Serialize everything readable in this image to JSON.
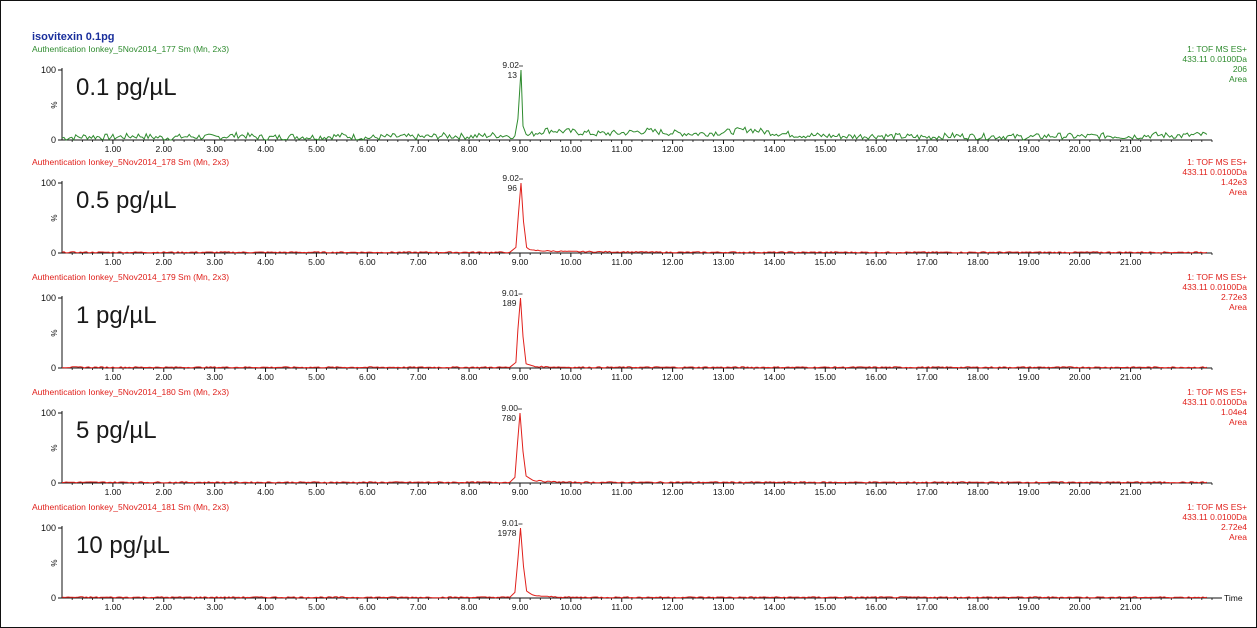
{
  "chart_data": {
    "type": "line",
    "title": "isovitexin 0.1pg",
    "xlabel": "Time",
    "xlim": [
      0,
      22.6
    ],
    "xticks": [
      1,
      2,
      3,
      4,
      5,
      6,
      7,
      8,
      9,
      10,
      11,
      12,
      13,
      14,
      15,
      16,
      17,
      18,
      19,
      20,
      21
    ],
    "xtick_labels": [
      "1.00",
      "2.00",
      "3.00",
      "4.00",
      "5.00",
      "6.00",
      "7.00",
      "8.00",
      "9.00",
      "10.00",
      "11.00",
      "12.00",
      "13.00",
      "14.00",
      "15.00",
      "16.00",
      "17.00",
      "18.00",
      "19.00",
      "20.00",
      "21.00"
    ],
    "ylim": [
      0,
      100
    ],
    "ytick_labels": [
      "100",
      "%",
      "0"
    ],
    "grid": false,
    "colors": {
      "axis": "#111111",
      "title": "#1a2f9c",
      "trace_green": "#2e8b2e",
      "trace_red": "#e0201b",
      "big_label": "#1a1a1a",
      "peak_label": "#222222"
    },
    "panels": [
      {
        "header": "Authentication Ionkey_5Nov2014_177 Sm (Mn, 2x3)",
        "color": "#2e8b2e",
        "label": "0.1 pg/µL",
        "info": [
          "1: TOF MS ES+",
          "433.11 0.0100Da",
          "206",
          "Area"
        ],
        "peak": {
          "time": 9.02,
          "time_label": "9.02",
          "area_label": "13",
          "height": 100
        },
        "noise": "high",
        "series": [
          [
            0.0,
            3
          ],
          [
            0.5,
            5
          ],
          [
            1.0,
            4
          ],
          [
            1.5,
            6
          ],
          [
            2.0,
            3
          ],
          [
            2.5,
            5
          ],
          [
            3.0,
            4
          ],
          [
            3.5,
            7
          ],
          [
            4.0,
            3
          ],
          [
            4.5,
            5
          ],
          [
            5.0,
            4
          ],
          [
            5.5,
            6
          ],
          [
            6.0,
            3
          ],
          [
            6.5,
            5
          ],
          [
            7.0,
            4
          ],
          [
            7.5,
            6
          ],
          [
            8.0,
            5
          ],
          [
            8.5,
            7
          ],
          [
            8.9,
            6
          ],
          [
            8.96,
            30
          ],
          [
            9.02,
            100
          ],
          [
            9.06,
            20
          ],
          [
            9.12,
            6
          ],
          [
            9.5,
            14
          ],
          [
            10.0,
            12
          ],
          [
            10.5,
            9
          ],
          [
            11.0,
            10
          ],
          [
            11.5,
            13
          ],
          [
            12.0,
            10
          ],
          [
            12.5,
            9
          ],
          [
            13.0,
            11
          ],
          [
            13.5,
            15
          ],
          [
            14.0,
            10
          ],
          [
            14.5,
            7
          ],
          [
            15.0,
            6
          ],
          [
            15.5,
            5
          ],
          [
            16.0,
            6
          ],
          [
            16.5,
            5
          ],
          [
            17.0,
            4
          ],
          [
            17.5,
            6
          ],
          [
            18.0,
            5
          ],
          [
            18.5,
            5
          ],
          [
            19.0,
            4
          ],
          [
            19.5,
            6
          ],
          [
            20.0,
            5
          ],
          [
            20.5,
            6
          ],
          [
            21.0,
            5
          ],
          [
            21.5,
            7
          ],
          [
            22.0,
            6
          ],
          [
            22.5,
            8
          ]
        ]
      },
      {
        "header": "Authentication Ionkey_5Nov2014_178 Sm (Mn, 2x3)",
        "color": "#e0201b",
        "label": "0.5 pg/µL",
        "info": [
          "1: TOF MS ES+",
          "433.11 0.0100Da",
          "1.42e3",
          "Area"
        ],
        "peak": {
          "time": 9.02,
          "time_label": "9.02",
          "area_label": "96",
          "height": 100
        },
        "noise": "low",
        "series": [
          [
            0.0,
            1
          ],
          [
            8.8,
            1
          ],
          [
            8.92,
            8
          ],
          [
            8.97,
            55
          ],
          [
            9.02,
            100
          ],
          [
            9.07,
            45
          ],
          [
            9.13,
            8
          ],
          [
            9.2,
            4
          ],
          [
            9.5,
            3
          ],
          [
            10.0,
            2
          ],
          [
            12.0,
            1
          ],
          [
            22.5,
            1
          ]
        ]
      },
      {
        "header": "Authentication Ionkey_5Nov2014_179 Sm (Mn, 2x3)",
        "color": "#e0201b",
        "label": "1 pg/µL",
        "info": [
          "1: TOF MS ES+",
          "433.11 0.0100Da",
          "2.72e3",
          "Area"
        ],
        "peak": {
          "time": 9.01,
          "time_label": "9.01",
          "area_label": "189",
          "height": 100
        },
        "noise": "low",
        "series": [
          [
            0.0,
            1
          ],
          [
            8.8,
            1
          ],
          [
            8.92,
            8
          ],
          [
            8.96,
            55
          ],
          [
            9.01,
            100
          ],
          [
            9.06,
            45
          ],
          [
            9.12,
            6
          ],
          [
            9.3,
            2
          ],
          [
            10.0,
            1
          ],
          [
            22.5,
            1
          ]
        ]
      },
      {
        "header": "Authentication Ionkey_5Nov2014_180 Sm (Mn, 2x3)",
        "color": "#e0201b",
        "label": "5 pg/µL",
        "info": [
          "1: TOF MS ES+",
          "433.11 0.0100Da",
          "1.04e4",
          "Area"
        ],
        "peak": {
          "time": 9.0,
          "time_label": "9.00",
          "area_label": "780",
          "height": 100
        },
        "noise": "low",
        "series": [
          [
            0.0,
            1
          ],
          [
            8.8,
            1
          ],
          [
            8.9,
            8
          ],
          [
            8.95,
            55
          ],
          [
            9.0,
            100
          ],
          [
            9.06,
            45
          ],
          [
            9.12,
            10
          ],
          [
            9.25,
            4
          ],
          [
            9.5,
            2
          ],
          [
            10.0,
            1
          ],
          [
            22.5,
            1
          ]
        ]
      },
      {
        "header": "Authentication Ionkey_5Nov2014_181 Sm (Mn, 2x3)",
        "color": "#e0201b",
        "label": "10 pg/µL",
        "info": [
          "1: TOF MS ES+",
          "433.11 0.0100Da",
          "2.72e4",
          "Area"
        ],
        "peak": {
          "time": 9.01,
          "time_label": "9.01",
          "area_label": "1978",
          "height": 100
        },
        "noise": "low",
        "series": [
          [
            0.0,
            1
          ],
          [
            8.8,
            1
          ],
          [
            8.9,
            8
          ],
          [
            8.96,
            55
          ],
          [
            9.01,
            100
          ],
          [
            9.07,
            45
          ],
          [
            9.13,
            10
          ],
          [
            9.25,
            4
          ],
          [
            9.5,
            2
          ],
          [
            10.0,
            1
          ],
          [
            22.5,
            1
          ]
        ]
      }
    ]
  }
}
